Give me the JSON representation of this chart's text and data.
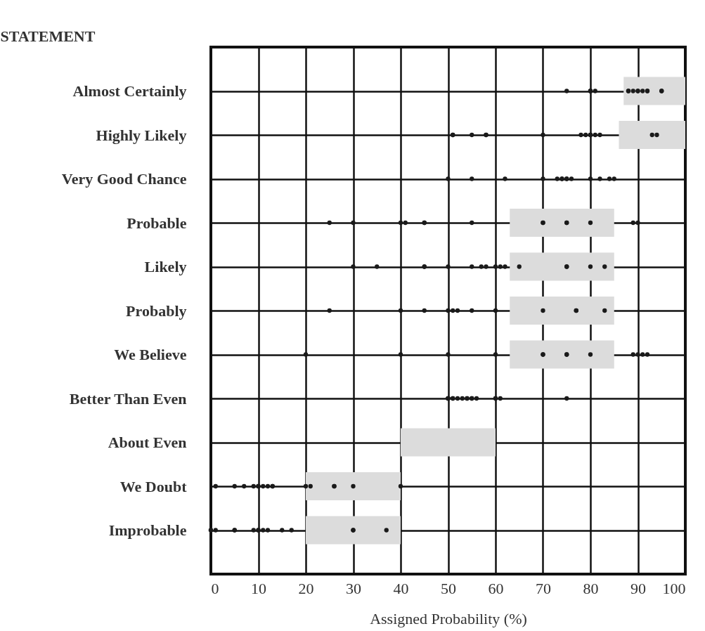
{
  "chart_data": {
    "type": "scatter",
    "orientation": "horizontal",
    "ylabel": "STATEMENT",
    "xlabel": "Assigned Probability (%)",
    "categories": [
      "Almost Certainly",
      "Highly Likely",
      "Very Good Chance",
      "Probable",
      "Likely",
      "Probably",
      "We Believe",
      "Better Than Even",
      "About Even",
      "We Doubt",
      "Improbable"
    ],
    "xlim": [
      0,
      100
    ],
    "xticks": [
      0,
      10,
      20,
      30,
      40,
      50,
      60,
      70,
      80,
      90,
      100
    ],
    "grid": true,
    "marker": "circle",
    "series": [
      {
        "type": "bar",
        "color": "#dcdcdc",
        "base": [
          87,
          86,
          null,
          63,
          63,
          63,
          63,
          null,
          40,
          20,
          20
        ],
        "values": [
          13,
          14,
          null,
          22,
          22,
          22,
          22,
          null,
          20,
          20,
          20
        ]
      },
      {
        "color": "#1a1a1a",
        "x": [
          "Almost Certainly",
          "Almost Certainly",
          "Almost Certainly",
          "Almost Certainly",
          "Almost Certainly",
          "Almost Certainly",
          "Almost Certainly",
          "Almost Certainly",
          "Almost Certainly",
          "Almost Certainly",
          "Almost Certainly",
          "Almost Certainly",
          "Almost Certainly",
          "Almost Certainly",
          "Almost Certainly",
          "Highly Likely",
          "Highly Likely",
          "Highly Likely",
          "Highly Likely",
          "Highly Likely",
          "Highly Likely",
          "Highly Likely",
          "Highly Likely",
          "Highly Likely",
          "Highly Likely",
          "Highly Likely",
          "Highly Likely",
          "Highly Likely",
          "Highly Likely",
          "Highly Likely",
          "Very Good Chance",
          "Very Good Chance",
          "Very Good Chance",
          "Very Good Chance",
          "Very Good Chance",
          "Very Good Chance",
          "Very Good Chance",
          "Very Good Chance",
          "Very Good Chance",
          "Very Good Chance",
          "Very Good Chance",
          "Very Good Chance",
          "Very Good Chance",
          "Very Good Chance",
          "Probable",
          "Probable",
          "Probable",
          "Probable",
          "Probable",
          "Probable",
          "Probable",
          "Probable",
          "Probable",
          "Probable",
          "Probable",
          "Probable",
          "Probable",
          "Probable",
          "Likely",
          "Likely",
          "Likely",
          "Likely",
          "Likely",
          "Likely",
          "Likely",
          "Likely",
          "Likely",
          "Likely",
          "Likely",
          "Likely",
          "Likely",
          "Likely",
          "Likely",
          "Likely",
          "Probably",
          "Probably",
          "Probably",
          "Probably",
          "Probably",
          "Probably",
          "Probably",
          "Probably",
          "Probably",
          "Probably",
          "Probably",
          "Probably",
          "We Believe",
          "We Believe",
          "We Believe",
          "We Believe",
          "We Believe",
          "We Believe",
          "We Believe",
          "We Believe",
          "We Believe",
          "We Believe",
          "We Believe",
          "We Believe",
          "We Believe",
          "Better Than Even",
          "Better Than Even",
          "Better Than Even",
          "Better Than Even",
          "Better Than Even",
          "Better Than Even",
          "Better Than Even",
          "Better Than Even",
          "Better Than Even",
          "Better Than Even",
          "Better Than Even",
          "Better Than Even",
          "Better Than Even",
          "Better Than Even",
          "Better Than Even",
          "Better Than Even",
          "We Doubt",
          "We Doubt",
          "We Doubt",
          "We Doubt",
          "We Doubt",
          "We Doubt",
          "We Doubt",
          "We Doubt",
          "We Doubt",
          "We Doubt",
          "We Doubt",
          "We Doubt",
          "We Doubt",
          "We Doubt",
          "We Doubt",
          "We Doubt",
          "Improbable",
          "Improbable",
          "Improbable",
          "Improbable",
          "Improbable",
          "Improbable",
          "Improbable",
          "Improbable",
          "Improbable",
          "Improbable",
          "Improbable",
          "Improbable",
          "Improbable",
          "Improbable",
          "Improbable"
        ],
        "values": [
          75,
          80,
          80,
          80,
          81,
          88,
          88,
          89,
          90,
          90,
          91,
          92,
          92,
          95,
          95,
          51,
          51,
          55,
          58,
          58,
          70,
          78,
          79,
          80,
          80,
          80,
          81,
          82,
          93,
          94,
          50,
          55,
          62,
          70,
          73,
          74,
          74,
          75,
          75,
          76,
          80,
          82,
          84,
          85,
          25,
          30,
          40,
          41,
          45,
          45,
          55,
          70,
          70,
          75,
          75,
          80,
          89,
          90,
          30,
          35,
          45,
          45,
          50,
          55,
          57,
          58,
          60,
          61,
          62,
          65,
          75,
          75,
          80,
          83,
          25,
          40,
          45,
          50,
          51,
          52,
          55,
          60,
          70,
          77,
          77,
          83,
          20,
          40,
          50,
          60,
          70,
          70,
          75,
          75,
          80,
          89,
          90,
          91,
          92,
          50,
          50,
          50,
          51,
          51,
          52,
          53,
          54,
          54,
          55,
          55,
          56,
          60,
          60,
          61,
          75,
          1,
          5,
          7,
          9,
          10,
          10,
          11,
          12,
          13,
          13,
          20,
          21,
          26,
          26,
          30,
          40,
          0,
          0,
          1,
          5,
          5,
          9,
          10,
          10,
          11,
          12,
          15,
          17,
          30,
          30,
          37
        ]
      }
    ]
  }
}
